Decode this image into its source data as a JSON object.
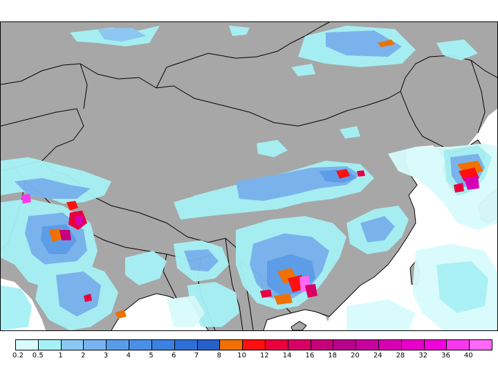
{
  "map": {
    "land_color": "#a7a7a7",
    "ocean_color": "#ffffff",
    "border_color": "#000000"
  },
  "legend": {
    "colors": [
      "#d8fbfb",
      "#a6f1f6",
      "#8cc8f4",
      "#78b4f0",
      "#5a9cea",
      "#4a90e6",
      "#3c80e0",
      "#2f6fd8",
      "#2860c8",
      "#f07000",
      "#ff1010",
      "#e8003c",
      "#d80064",
      "#c8007a",
      "#b8008c",
      "#c800a0",
      "#d800b4",
      "#e800c8",
      "#f000dc",
      "#f838ec",
      "#ff68f8"
    ],
    "labels": [
      "0.2",
      "0.5",
      "1",
      "2",
      "3",
      "4",
      "5",
      "6",
      "7",
      "8",
      "10",
      "12",
      "14",
      "16",
      "18",
      "20",
      "24",
      "28",
      "32",
      "36",
      "40"
    ]
  }
}
